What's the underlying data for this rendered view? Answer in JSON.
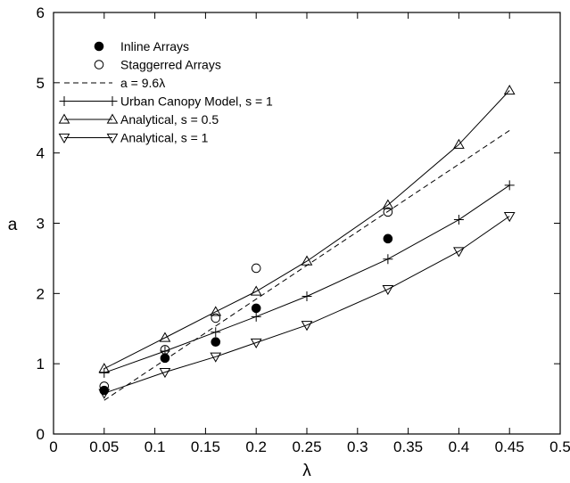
{
  "chart_data": {
    "type": "scatter",
    "title": "",
    "xlabel": "λ",
    "ylabel": "a",
    "xlim": [
      0,
      0.5
    ],
    "ylim": [
      0,
      6
    ],
    "x_ticks": [
      0,
      0.05,
      0.1,
      0.15,
      0.2,
      0.25,
      0.3,
      0.35,
      0.4,
      0.45,
      0.5
    ],
    "x_tick_labels": [
      "0",
      "0.05",
      "0.1",
      "0.15",
      "0.2",
      "0.25",
      "0.3",
      "0.35",
      "0.4",
      "0.45",
      "0.5"
    ],
    "y_ticks": [
      0,
      1,
      2,
      3,
      4,
      5,
      6
    ],
    "y_tick_labels": [
      "0",
      "1",
      "2",
      "3",
      "4",
      "5",
      "6"
    ],
    "grid": false,
    "legend_position": "top-left",
    "series": [
      {
        "name": "Inline Arrays",
        "style": "markers",
        "marker": "filled-circle",
        "points": [
          [
            0.05,
            0.62
          ],
          [
            0.11,
            1.08
          ],
          [
            0.16,
            1.31
          ],
          [
            0.2,
            1.79
          ],
          [
            0.33,
            2.78
          ]
        ]
      },
      {
        "name": "Staggerred Arrays",
        "style": "markers",
        "marker": "open-circle",
        "points": [
          [
            0.05,
            0.68
          ],
          [
            0.11,
            1.2
          ],
          [
            0.16,
            1.65
          ],
          [
            0.2,
            2.36
          ],
          [
            0.33,
            3.16
          ]
        ]
      },
      {
        "name": "a = 9.6λ",
        "style": "dashed-line",
        "marker": "none",
        "points": [
          [
            0.05,
            0.48
          ],
          [
            0.45,
            4.32
          ]
        ]
      },
      {
        "name": "Urban Canopy Model, s = 1",
        "style": "line-markers",
        "marker": "plus",
        "points": [
          [
            0.05,
            0.87
          ],
          [
            0.11,
            1.18
          ],
          [
            0.16,
            1.45
          ],
          [
            0.2,
            1.67
          ],
          [
            0.25,
            1.96
          ],
          [
            0.33,
            2.49
          ],
          [
            0.4,
            3.05
          ],
          [
            0.45,
            3.54
          ]
        ]
      },
      {
        "name": "Analytical, s = 0.5",
        "style": "line-markers",
        "marker": "triangle-up",
        "points": [
          [
            0.05,
            0.93
          ],
          [
            0.11,
            1.37
          ],
          [
            0.16,
            1.74
          ],
          [
            0.2,
            2.03
          ],
          [
            0.25,
            2.46
          ],
          [
            0.33,
            3.26
          ],
          [
            0.4,
            4.12
          ],
          [
            0.45,
            4.89
          ]
        ]
      },
      {
        "name": "Analytical, s = 1",
        "style": "line-markers",
        "marker": "triangle-down",
        "points": [
          [
            0.05,
            0.58
          ],
          [
            0.11,
            0.88
          ],
          [
            0.16,
            1.1
          ],
          [
            0.2,
            1.3
          ],
          [
            0.25,
            1.55
          ],
          [
            0.33,
            2.06
          ],
          [
            0.4,
            2.6
          ],
          [
            0.45,
            3.1
          ]
        ]
      }
    ]
  }
}
